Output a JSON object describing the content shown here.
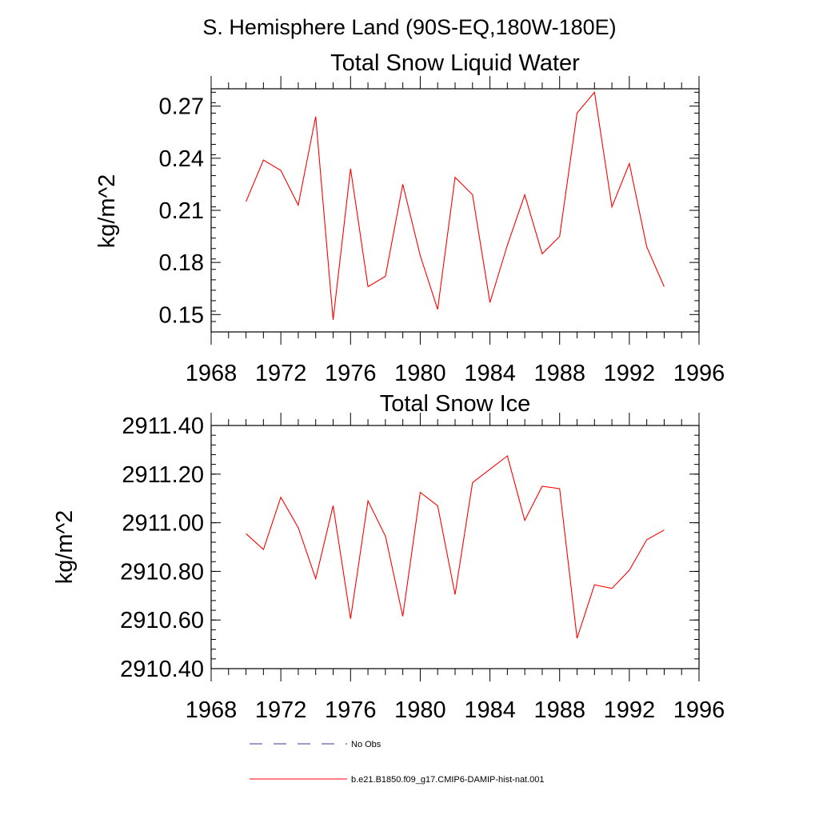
{
  "figure_title": "S. Hemisphere Land (90S-EQ,180W-180E)",
  "colors": {
    "series": "#ff0000",
    "obs": "#3a3a8c",
    "axes": "#000000"
  },
  "legend": {
    "placement": "bottom",
    "entries": [
      {
        "label": "No Obs",
        "style": "dashed",
        "color": "#3a3a8c"
      },
      {
        "label": "b.e21.B1850.f09_g17.CMIP6-DAMIP-hist-nat.001",
        "style": "solid",
        "color": "#ff0000"
      }
    ]
  },
  "chart_data": [
    {
      "type": "line",
      "title": "Total Snow Liquid Water",
      "xlabel": "",
      "ylabel": "kg/m^2",
      "xlim": [
        1968,
        1996
      ],
      "ylim": [
        0.14,
        0.28
      ],
      "xticks": [
        1968,
        1972,
        1976,
        1980,
        1984,
        1988,
        1992,
        1996
      ],
      "xtick_labels": [
        "1968",
        "1972",
        "1976",
        "1980",
        "1984",
        "1988",
        "1992",
        "1996"
      ],
      "yticks": [
        0.15,
        0.18,
        0.21,
        0.24,
        0.27
      ],
      "ytick_labels": [
        "0.15",
        "0.18",
        "0.21",
        "0.24",
        "0.27"
      ],
      "grid": false,
      "x": [
        1970,
        1971,
        1972,
        1973,
        1974,
        1975,
        1976,
        1977,
        1978,
        1979,
        1980,
        1981,
        1982,
        1983,
        1984,
        1985,
        1986,
        1987,
        1988,
        1989,
        1990,
        1991,
        1992,
        1993,
        1994
      ],
      "series": [
        {
          "name": "b.e21.B1850.f09_g17.CMIP6-DAMIP-hist-nat.001",
          "values": [
            0.215,
            0.239,
            0.233,
            0.213,
            0.264,
            0.147,
            0.234,
            0.166,
            0.172,
            0.225,
            0.184,
            0.153,
            0.229,
            0.219,
            0.157,
            0.19,
            0.219,
            0.185,
            0.195,
            0.266,
            0.278,
            0.212,
            0.237,
            0.189,
            0.166
          ]
        }
      ]
    },
    {
      "type": "line",
      "title": "Total Snow Ice",
      "xlabel": "",
      "ylabel": "kg/m^2",
      "xlim": [
        1968,
        1996
      ],
      "ylim": [
        2910.4,
        2911.4
      ],
      "xticks": [
        1968,
        1972,
        1976,
        1980,
        1984,
        1988,
        1992,
        1996
      ],
      "xtick_labels": [
        "1968",
        "1972",
        "1976",
        "1980",
        "1984",
        "1988",
        "1992",
        "1996"
      ],
      "yticks": [
        2910.4,
        2910.6,
        2910.8,
        2911.0,
        2911.2,
        2911.4
      ],
      "ytick_labels": [
        "2910.40",
        "2910.60",
        "2910.80",
        "2911.00",
        "2911.20",
        "2911.40"
      ],
      "grid": false,
      "x": [
        1970,
        1971,
        1972,
        1973,
        1974,
        1975,
        1976,
        1977,
        1978,
        1979,
        1980,
        1981,
        1982,
        1983,
        1984,
        1985,
        1986,
        1987,
        1988,
        1989,
        1990,
        1991,
        1992,
        1993,
        1994
      ],
      "series": [
        {
          "name": "b.e21.B1850.f09_g17.CMIP6-DAMIP-hist-nat.001",
          "values": [
            2910.955,
            2910.89,
            2911.105,
            2910.98,
            2910.77,
            2911.07,
            2910.605,
            2911.09,
            2910.945,
            2910.615,
            2911.125,
            2911.07,
            2910.705,
            2911.165,
            2911.22,
            2911.275,
            2911.01,
            2911.15,
            2911.14,
            2910.525,
            2910.745,
            2910.73,
            2910.805,
            2910.93,
            2910.97
          ]
        }
      ]
    }
  ]
}
